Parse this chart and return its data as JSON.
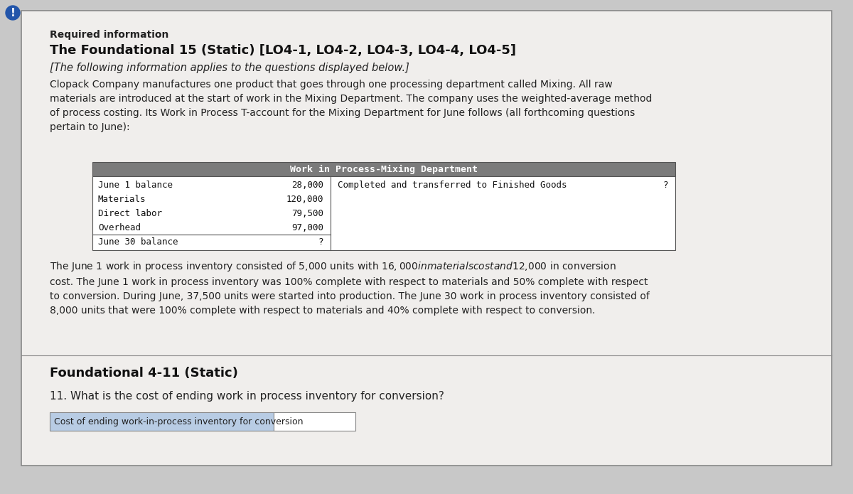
{
  "bg_color": "#c8c8c8",
  "card_color": "#f0eeec",
  "card_border": "#888888",
  "required_info_label": "Required information",
  "title": "The Foundational 15 (Static) [LO4-1, LO4-2, LO4-3, LO4-4, LO4-5]",
  "subtitle": "[The following information applies to the questions displayed below.]",
  "body_text": "Clopack Company manufactures one product that goes through one processing department called Mixing. All raw\nmaterials are introduced at the start of work in the Mixing Department. The company uses the weighted-average method\nof process costing. Its Work in Process T-account for the Mixing Department for June follows (all forthcoming questions\npertain to June):",
  "t_account_header": "Work in Process-Mixing Department",
  "t_left_labels": [
    "June 1 balance",
    "Materials",
    "Direct labor",
    "Overhead",
    "June 30 balance"
  ],
  "t_left_values": [
    "28,000",
    "120,000",
    "79,500",
    "97,000",
    "?"
  ],
  "t_right_label": "Completed and transferred to Finished Goods",
  "t_right_value": "?",
  "bottom_paragraph": "The June 1 work in process inventory consisted of 5,000 units with $16,000 in materials cost and $12,000 in conversion\ncost. The June 1 work in process inventory was 100% complete with respect to materials and 50% complete with respect\nto conversion. During June, 37,500 units were started into production. The June 30 work in process inventory consisted of\n8,000 units that were 100% complete with respect to materials and 40% complete with respect to conversion.",
  "section_title": "Foundational 4-11 (Static)",
  "question_text": "11. What is the cost of ending work in process inventory for conversion?",
  "answer_label": "Cost of ending work-in-process inventory for conversion",
  "answer_label_bg": "#b8cce4",
  "exclamation_color": "#2255aa",
  "header_bar_color": "#7b7b7b"
}
